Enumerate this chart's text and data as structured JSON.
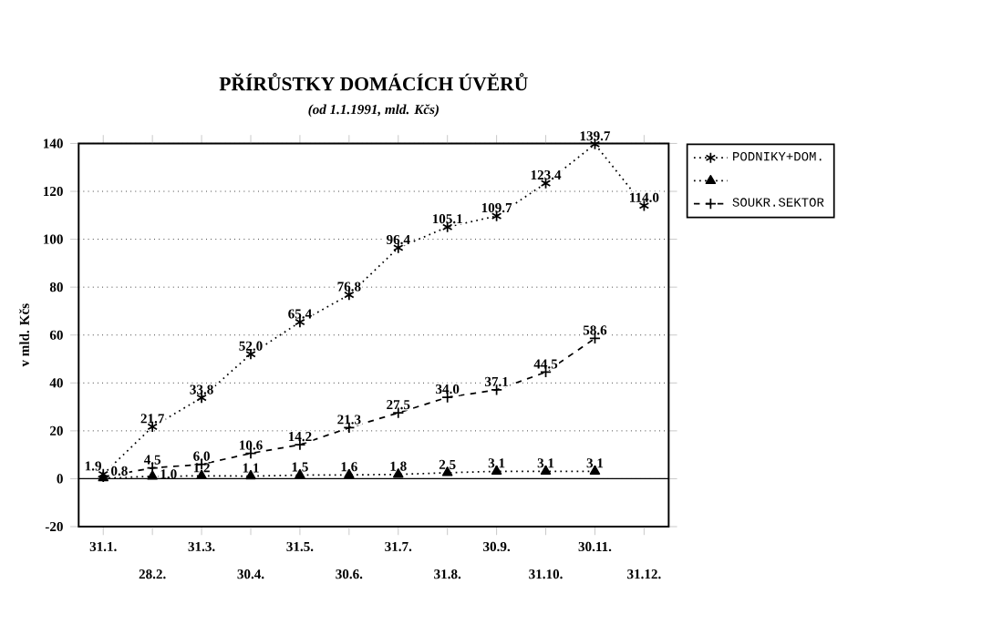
{
  "chart_data": {
    "type": "line",
    "title": "PŘÍRŮSTKY DOMÁCÍCH ÚVĚRŮ",
    "subtitle": "(od 1.1.1991, mld. Kčs)",
    "ylabel": "v mld. Kčs",
    "categories": [
      "31.1.",
      "28.2.",
      "31.3.",
      "30.4.",
      "31.5.",
      "30.6.",
      "31.7.",
      "31.8.",
      "30.9.",
      "31.10.",
      "30.11.",
      "31.12."
    ],
    "ylim": [
      -20,
      140
    ],
    "yticks": [
      -20,
      0,
      20,
      40,
      60,
      80,
      100,
      120,
      140
    ],
    "grid": "y",
    "legend": "right",
    "series": [
      {
        "name": "PODNIKY+DOM.",
        "color": "#000000",
        "marker": "cross",
        "line_style": "dotted",
        "values": [
          1.9,
          21.7,
          33.8,
          52.0,
          65.4,
          76.8,
          96.4,
          105.1,
          109.7,
          123.4,
          139.7,
          114.0
        ],
        "value_labels": [
          "1.9",
          "21.7",
          "33.8",
          "52.0",
          "65.4",
          "76.8",
          "96.4",
          "105.1",
          "109.7",
          "123.4",
          "139.7",
          "114.0"
        ]
      },
      {
        "color": "#000000",
        "marker": "triangle",
        "line_style": "dotted",
        "values": [
          0.3,
          1.0,
          1.2,
          1.1,
          1.5,
          1.6,
          1.8,
          2.5,
          3.1,
          3.1,
          3.1,
          null
        ],
        "value_labels": [
          null,
          "1.0",
          "1.2",
          "1.1",
          "1.5",
          "1.6",
          "1.8",
          "2.5",
          "3.1",
          "3.1",
          "3.1",
          null
        ]
      },
      {
        "name": "SOUKR.SEKTOR",
        "color": "#000000",
        "marker": "cross",
        "line_style": "dashed",
        "values": [
          0.8,
          4.5,
          6.0,
          10.6,
          14.2,
          21.3,
          27.5,
          34.0,
          37.1,
          44.5,
          58.6,
          null
        ],
        "value_labels": [
          "0.8",
          "4.5",
          "6.0",
          "10.6",
          "14.2",
          "21.3",
          "27.5",
          "34.0",
          "37.1",
          "44.5",
          "58.6",
          null
        ]
      }
    ]
  }
}
